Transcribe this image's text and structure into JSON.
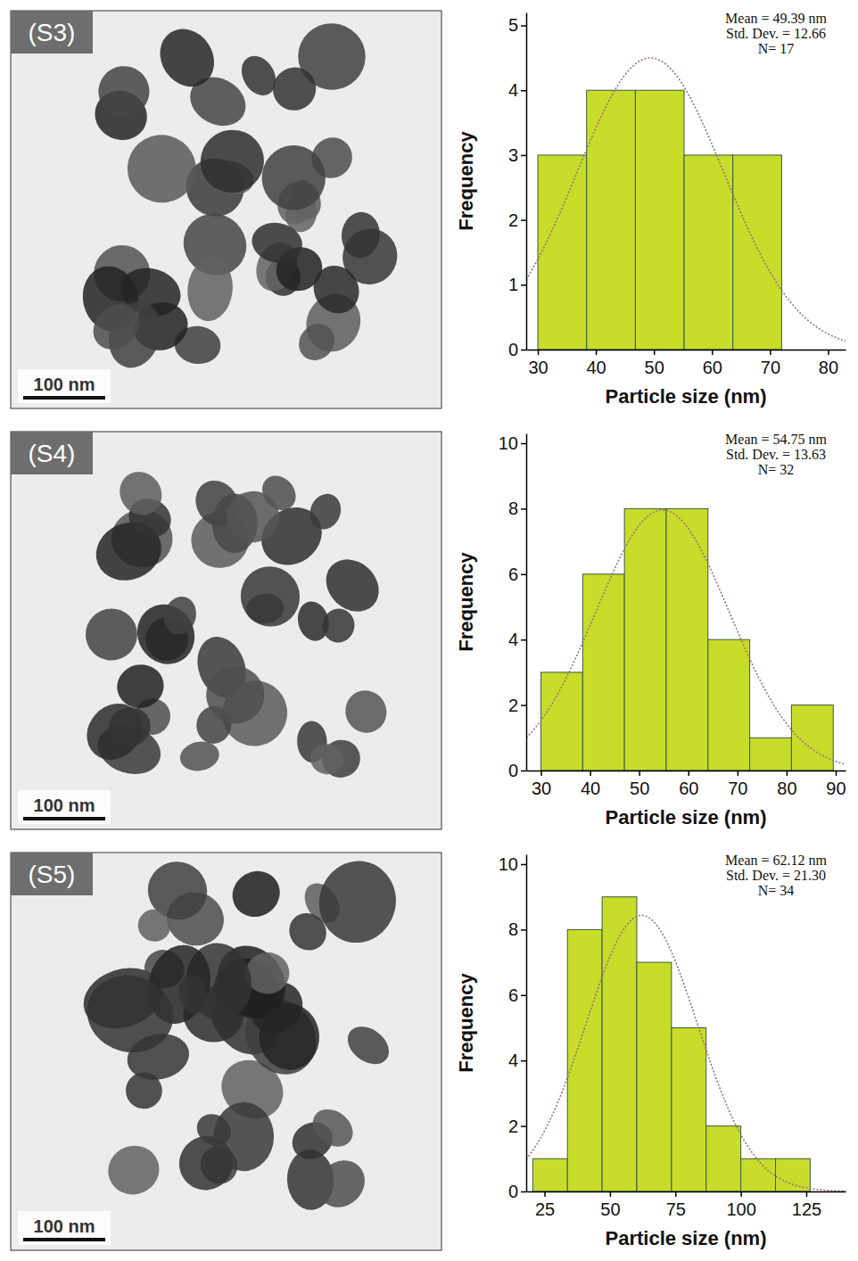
{
  "chart_data": [
    {
      "type": "histogram",
      "panel_label": "(S3)",
      "scale_bar_label": "100 nm",
      "x_label": "Particle size (nm)",
      "y_label": "Frequency",
      "annotations": [
        "Mean = 49.39 nm",
        "Std. Dev. = 12.66",
        "N= 17"
      ],
      "fit": {
        "mean": 49.39,
        "std_dev": 12.66,
        "n": 17
      },
      "bins": [
        30,
        38.4,
        46.8,
        55.2,
        63.6,
        72
      ],
      "counts": [
        3,
        4,
        4,
        3,
        3
      ],
      "color": "#c8dc2a",
      "xlim": [
        28,
        83
      ],
      "xticks": [
        30,
        40,
        50,
        60,
        70,
        80
      ],
      "ylim": [
        0,
        5.2
      ],
      "yticks": [
        0,
        1,
        2,
        3,
        4,
        5
      ]
    },
    {
      "type": "histogram",
      "panel_label": "(S4)",
      "scale_bar_label": "100 nm",
      "x_label": "Particle size (nm)",
      "y_label": "Frequency",
      "annotations": [
        "Mean = 54.75 nm",
        "Std. Dev. = 13.63",
        "N= 32"
      ],
      "fit": {
        "mean": 54.75,
        "std_dev": 13.63,
        "n": 32
      },
      "bins": [
        30,
        38.5,
        47,
        55.5,
        64,
        72.5,
        81,
        89.5
      ],
      "counts": [
        3,
        6,
        8,
        8,
        4,
        1,
        2
      ],
      "color": "#c8dc2a",
      "xlim": [
        27,
        92
      ],
      "xticks": [
        30,
        40,
        50,
        60,
        70,
        80,
        90
      ],
      "ylim": [
        0,
        10.3
      ],
      "yticks": [
        0,
        2,
        4,
        6,
        8,
        10
      ]
    },
    {
      "type": "histogram",
      "panel_label": "(S5)",
      "scale_bar_label": "100 nm",
      "x_label": "Particle size (nm)",
      "y_label": "Frequency",
      "annotations": [
        "Mean = 62.12 nm",
        "Std. Dev. = 21.30",
        "N= 34"
      ],
      "fit": {
        "mean": 62.12,
        "std_dev": 21.3,
        "n": 34
      },
      "bins": [
        20.5,
        33.75,
        47,
        60.25,
        73.5,
        86.75,
        100,
        113.25,
        126.5
      ],
      "counts": [
        1,
        8,
        9,
        7,
        5,
        2,
        1,
        1
      ],
      "color": "#c8dc2a",
      "xlim": [
        18,
        140
      ],
      "xticks": [
        25,
        50,
        75,
        100,
        125
      ],
      "ylim": [
        0,
        10.3
      ],
      "yticks": [
        0,
        2,
        4,
        6,
        8,
        10
      ]
    }
  ]
}
